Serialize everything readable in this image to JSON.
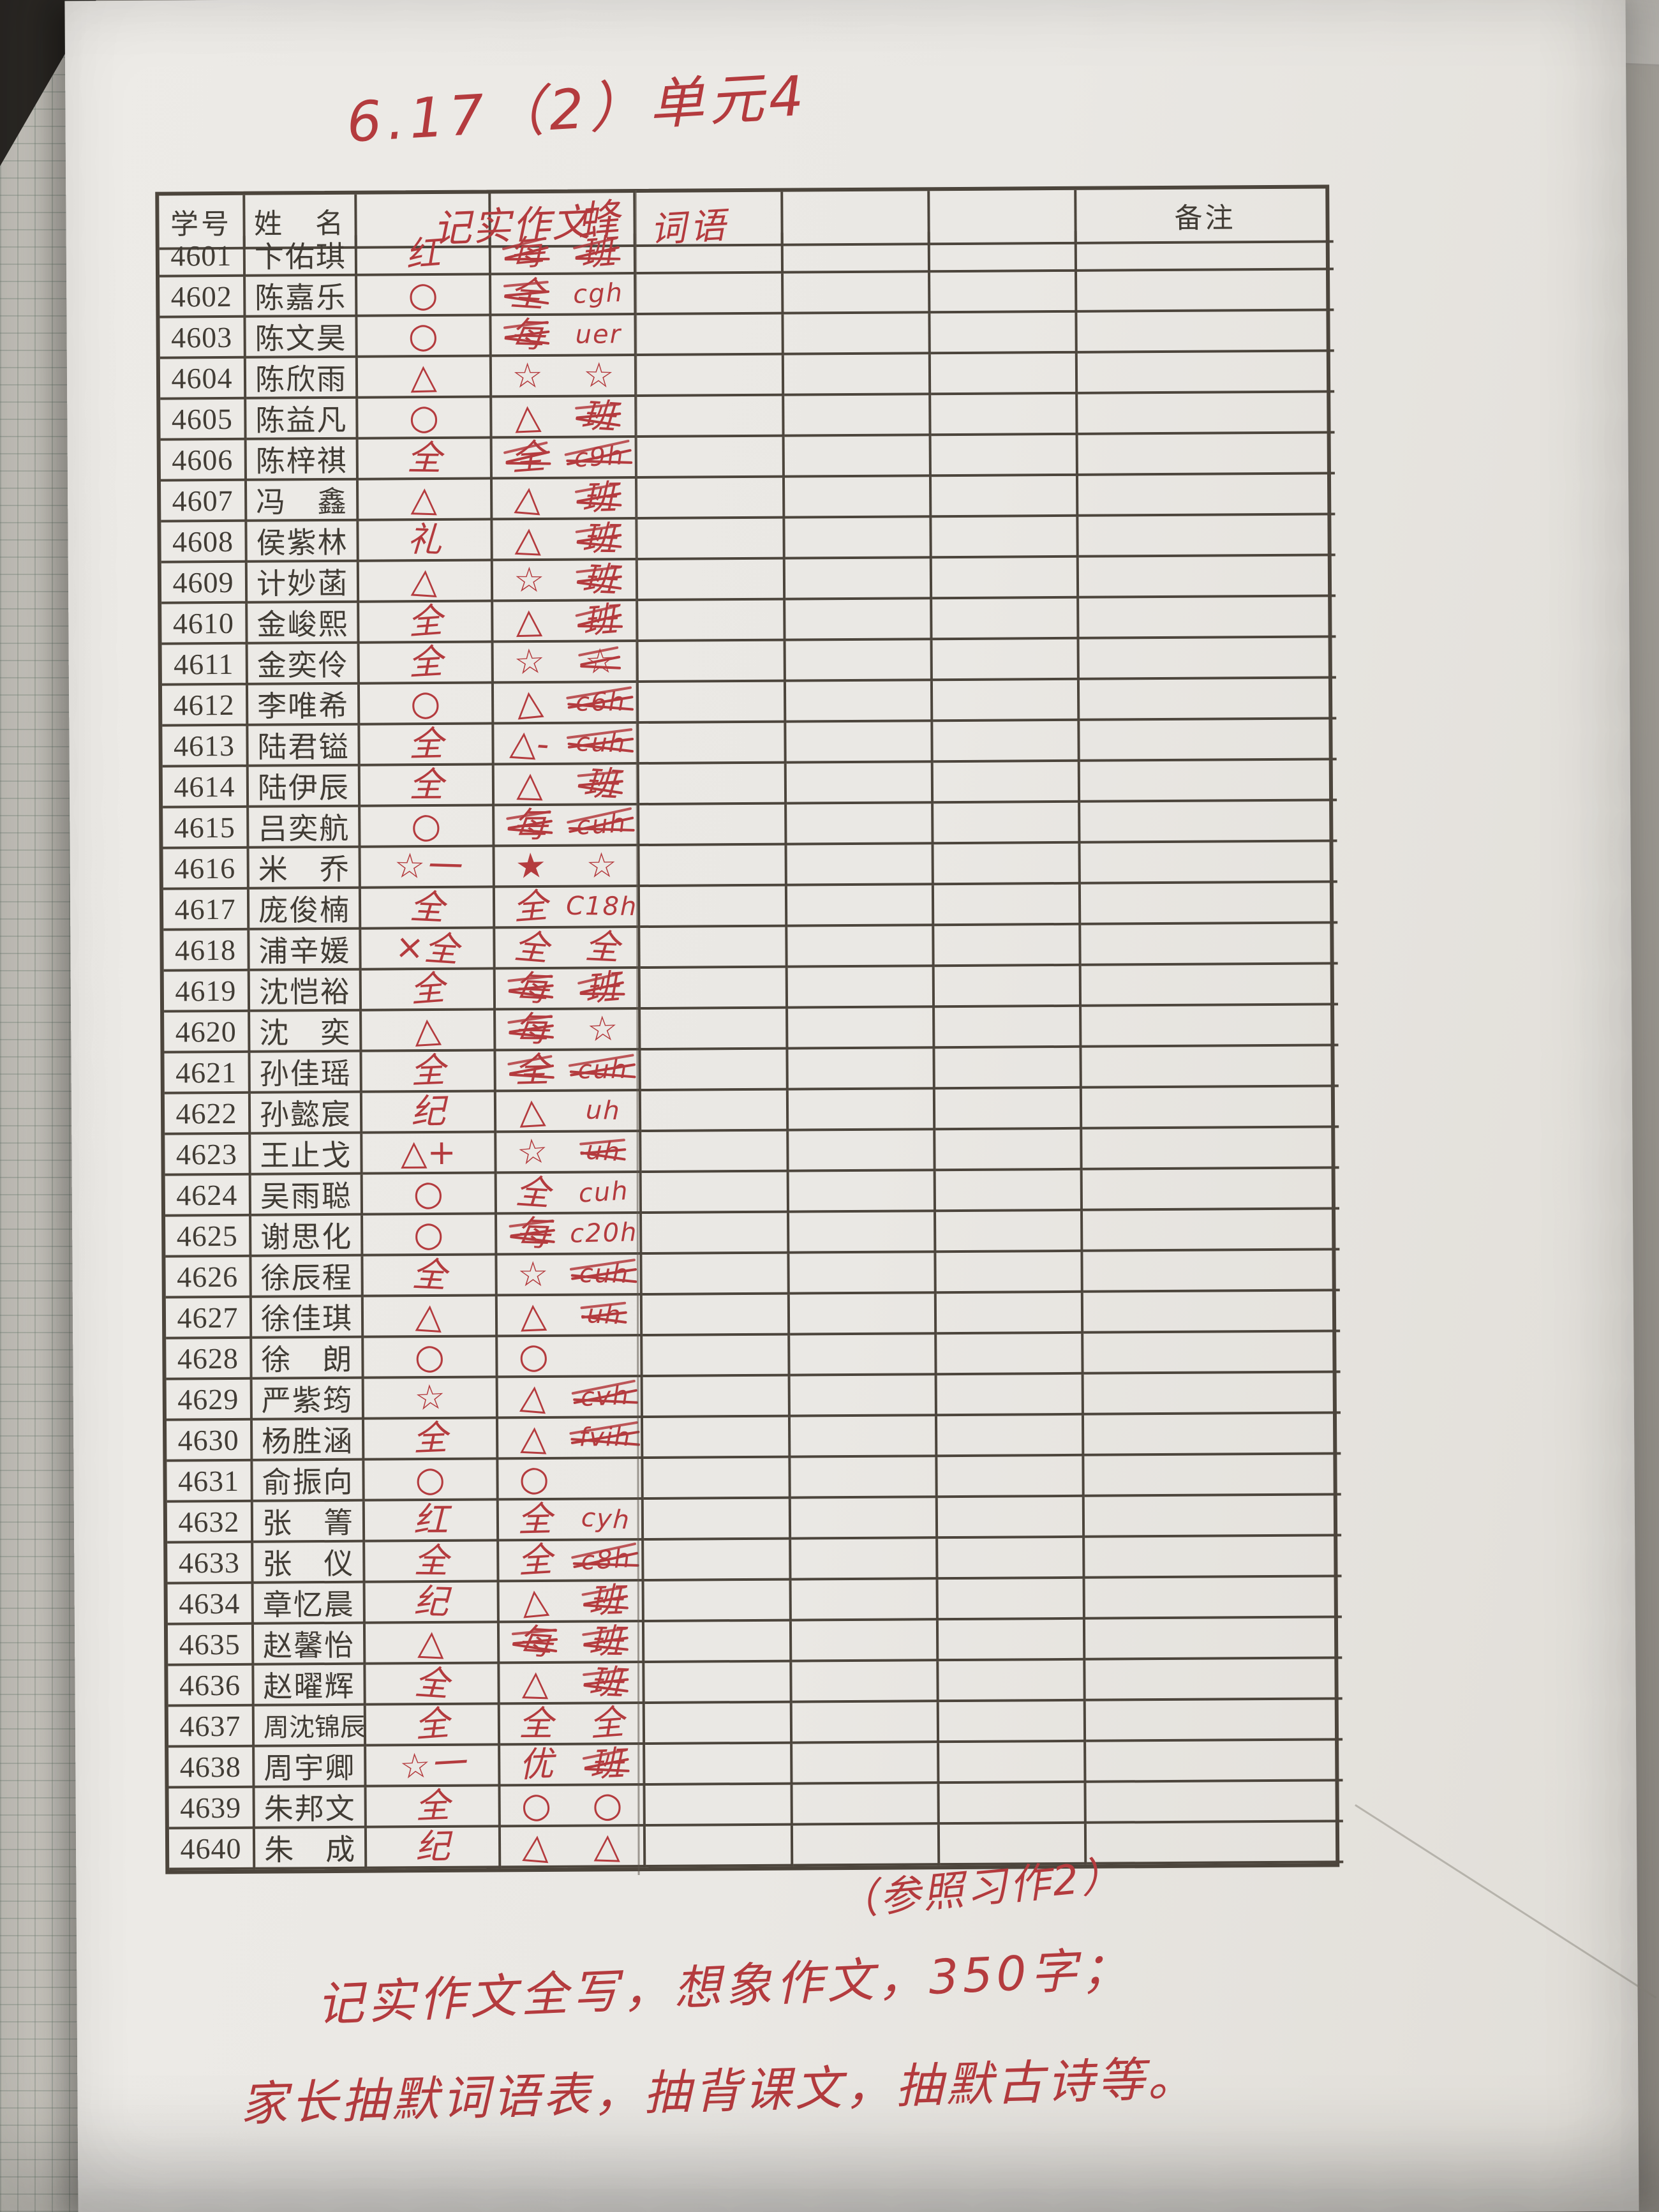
{
  "colors": {
    "paper": "#e9e7e3",
    "ink_red": "#b43b3e",
    "print_ink": "#413c35",
    "grid_line": "#4c453c"
  },
  "annotations": {
    "top": "6.17（2）单元4",
    "ref": "（参照习作2）",
    "note1": "记实作文全写，想象作文，350字；",
    "note2": "家长抽默词语表，抽背课文，抽默古诗等。"
  },
  "table": {
    "headers": {
      "id": "学号",
      "name": "姓　名",
      "remark": "备注"
    },
    "red_headers": [
      "记实作文",
      "蜂",
      "词语"
    ],
    "rows": [
      {
        "id": "4601",
        "name": "卞佑琪",
        "m1": "红",
        "s1": 0,
        "m2": "每",
        "s2": 1,
        "m3": "班",
        "s3": 1
      },
      {
        "id": "4602",
        "name": "陈嘉乐",
        "m1": "○",
        "s1": 0,
        "m2": "全",
        "s2": 1,
        "m3": "cgh",
        "s3": 0
      },
      {
        "id": "4603",
        "name": "陈文昊",
        "m1": "○",
        "s1": 0,
        "m2": "每",
        "s2": 1,
        "m3": "uer",
        "s3": 0
      },
      {
        "id": "4604",
        "name": "陈欣雨",
        "m1": "△",
        "s1": 0,
        "m2": "☆",
        "s2": 0,
        "m3": "☆",
        "s3": 0
      },
      {
        "id": "4605",
        "name": "陈益凡",
        "m1": "○",
        "s1": 0,
        "m2": "△",
        "s2": 0,
        "m3": "班",
        "s3": 1
      },
      {
        "id": "4606",
        "name": "陈梓祺",
        "m1": "全",
        "s1": 0,
        "m2": "全",
        "s2": 1,
        "m3": "c9h",
        "s3": 1
      },
      {
        "id": "4607",
        "name": "冯　鑫",
        "m1": "△",
        "s1": 0,
        "m2": "△",
        "s2": 0,
        "m3": "班",
        "s3": 1
      },
      {
        "id": "4608",
        "name": "侯紫林",
        "m1": "礼",
        "s1": 0,
        "m2": "△",
        "s2": 0,
        "m3": "班",
        "s3": 1
      },
      {
        "id": "4609",
        "name": "计妙菡",
        "m1": "△",
        "s1": 0,
        "m2": "☆",
        "s2": 0,
        "m3": "班",
        "s3": 1
      },
      {
        "id": "4610",
        "name": "金峻熙",
        "m1": "全",
        "s1": 0,
        "m2": "△",
        "s2": 0,
        "m3": "班",
        "s3": 1
      },
      {
        "id": "4611",
        "name": "金奕伶",
        "m1": "全",
        "s1": 0,
        "m2": "☆",
        "s2": 0,
        "m3": "☆",
        "s3": 1
      },
      {
        "id": "4612",
        "name": "李唯希",
        "m1": "○",
        "s1": 0,
        "m2": "△",
        "s2": 0,
        "m3": "c6h",
        "s3": 1
      },
      {
        "id": "4613",
        "name": "陆君镒",
        "m1": "全",
        "s1": 0,
        "m2": "△-",
        "s2": 0,
        "m3": "cuh",
        "s3": 1
      },
      {
        "id": "4614",
        "name": "陆伊辰",
        "m1": "全",
        "s1": 0,
        "m2": "△",
        "s2": 0,
        "m3": "班",
        "s3": 1
      },
      {
        "id": "4615",
        "name": "吕奕航",
        "m1": "○",
        "s1": 0,
        "m2": "每",
        "s2": 1,
        "m3": "cuh",
        "s3": 1
      },
      {
        "id": "4616",
        "name": "米　乔",
        "m1": "☆一",
        "s1": 0,
        "m2": "★",
        "s2": 0,
        "m3": "☆",
        "s3": 0
      },
      {
        "id": "4617",
        "name": "庞俊楠",
        "m1": "全",
        "s1": 0,
        "m2": "全",
        "s2": 0,
        "m3": "C18h",
        "s3": 0
      },
      {
        "id": "4618",
        "name": "浦辛媛",
        "m1": "×全",
        "s1": 0,
        "m2": "全",
        "s2": 0,
        "m3": "全",
        "s3": 0
      },
      {
        "id": "4619",
        "name": "沈恺裕",
        "m1": "全",
        "s1": 0,
        "m2": "每",
        "s2": 1,
        "m3": "班",
        "s3": 1
      },
      {
        "id": "4620",
        "name": "沈　奕",
        "m1": "△",
        "s1": 0,
        "m2": "每",
        "s2": 1,
        "m3": "☆",
        "s3": 0
      },
      {
        "id": "4621",
        "name": "孙佳瑶",
        "m1": "全",
        "s1": 0,
        "m2": "全",
        "s2": 1,
        "m3": "cuh",
        "s3": 1
      },
      {
        "id": "4622",
        "name": "孙懿宸",
        "m1": "纪",
        "s1": 0,
        "m2": "△",
        "s2": 0,
        "m3": "uh",
        "s3": 0
      },
      {
        "id": "4623",
        "name": "王止戈",
        "m1": "△+",
        "s1": 0,
        "m2": "☆",
        "s2": 0,
        "m3": "uh",
        "s3": 1
      },
      {
        "id": "4624",
        "name": "吴雨聪",
        "m1": "○",
        "s1": 0,
        "m2": "全",
        "s2": 0,
        "m3": "cuh",
        "s3": 0
      },
      {
        "id": "4625",
        "name": "谢思化",
        "m1": "○",
        "s1": 0,
        "m2": "每",
        "s2": 1,
        "m3": "c20h",
        "s3": 0
      },
      {
        "id": "4626",
        "name": "徐辰程",
        "m1": "全",
        "s1": 0,
        "m2": "☆",
        "s2": 0,
        "m3": "cuh",
        "s3": 1
      },
      {
        "id": "4627",
        "name": "徐佳琪",
        "m1": "△",
        "s1": 0,
        "m2": "△",
        "s2": 0,
        "m3": "uh",
        "s3": 1
      },
      {
        "id": "4628",
        "name": "徐　朗",
        "m1": "○",
        "s1": 0,
        "m2": "○",
        "s2": 0,
        "m3": "",
        "s3": 0
      },
      {
        "id": "4629",
        "name": "严紫筠",
        "m1": "☆",
        "s1": 0,
        "m2": "△",
        "s2": 0,
        "m3": "cvh",
        "s3": 1
      },
      {
        "id": "4630",
        "name": "杨胜涵",
        "m1": "全",
        "s1": 0,
        "m2": "△",
        "s2": 0,
        "m3": "fvih",
        "s3": 1
      },
      {
        "id": "4631",
        "name": "俞振向",
        "m1": "○",
        "s1": 0,
        "m2": "○",
        "s2": 0,
        "m3": "",
        "s3": 0
      },
      {
        "id": "4632",
        "name": "张　箐",
        "m1": "红",
        "s1": 0,
        "m2": "全",
        "s2": 0,
        "m3": "cyh",
        "s3": 0
      },
      {
        "id": "4633",
        "name": "张　仪",
        "m1": "全",
        "s1": 0,
        "m2": "全",
        "s2": 0,
        "m3": "c8h",
        "s3": 1
      },
      {
        "id": "4634",
        "name": "章忆晨",
        "m1": "纪",
        "s1": 0,
        "m2": "△",
        "s2": 0,
        "m3": "班",
        "s3": 1
      },
      {
        "id": "4635",
        "name": "赵馨怡",
        "m1": "△",
        "s1": 0,
        "m2": "每",
        "s2": 1,
        "m3": "班",
        "s3": 1
      },
      {
        "id": "4636",
        "name": "赵曜辉",
        "m1": "全",
        "s1": 0,
        "m2": "△",
        "s2": 0,
        "m3": "班",
        "s3": 1
      },
      {
        "id": "4637",
        "name": "周沈锦辰",
        "m1": "全",
        "s1": 0,
        "m2": "全",
        "s2": 0,
        "m3": "全",
        "s3": 0
      },
      {
        "id": "4638",
        "name": "周宇卿",
        "m1": "☆一",
        "s1": 0,
        "m2": "优",
        "s2": 0,
        "m3": "班",
        "s3": 1
      },
      {
        "id": "4639",
        "name": "朱邦文",
        "m1": "全",
        "s1": 0,
        "m2": "○",
        "s2": 0,
        "m3": "○",
        "s3": 0
      },
      {
        "id": "4640",
        "name": "朱　成",
        "m1": "纪",
        "s1": 0,
        "m2": "△",
        "s2": 0,
        "m3": "△",
        "s3": 0
      }
    ]
  }
}
